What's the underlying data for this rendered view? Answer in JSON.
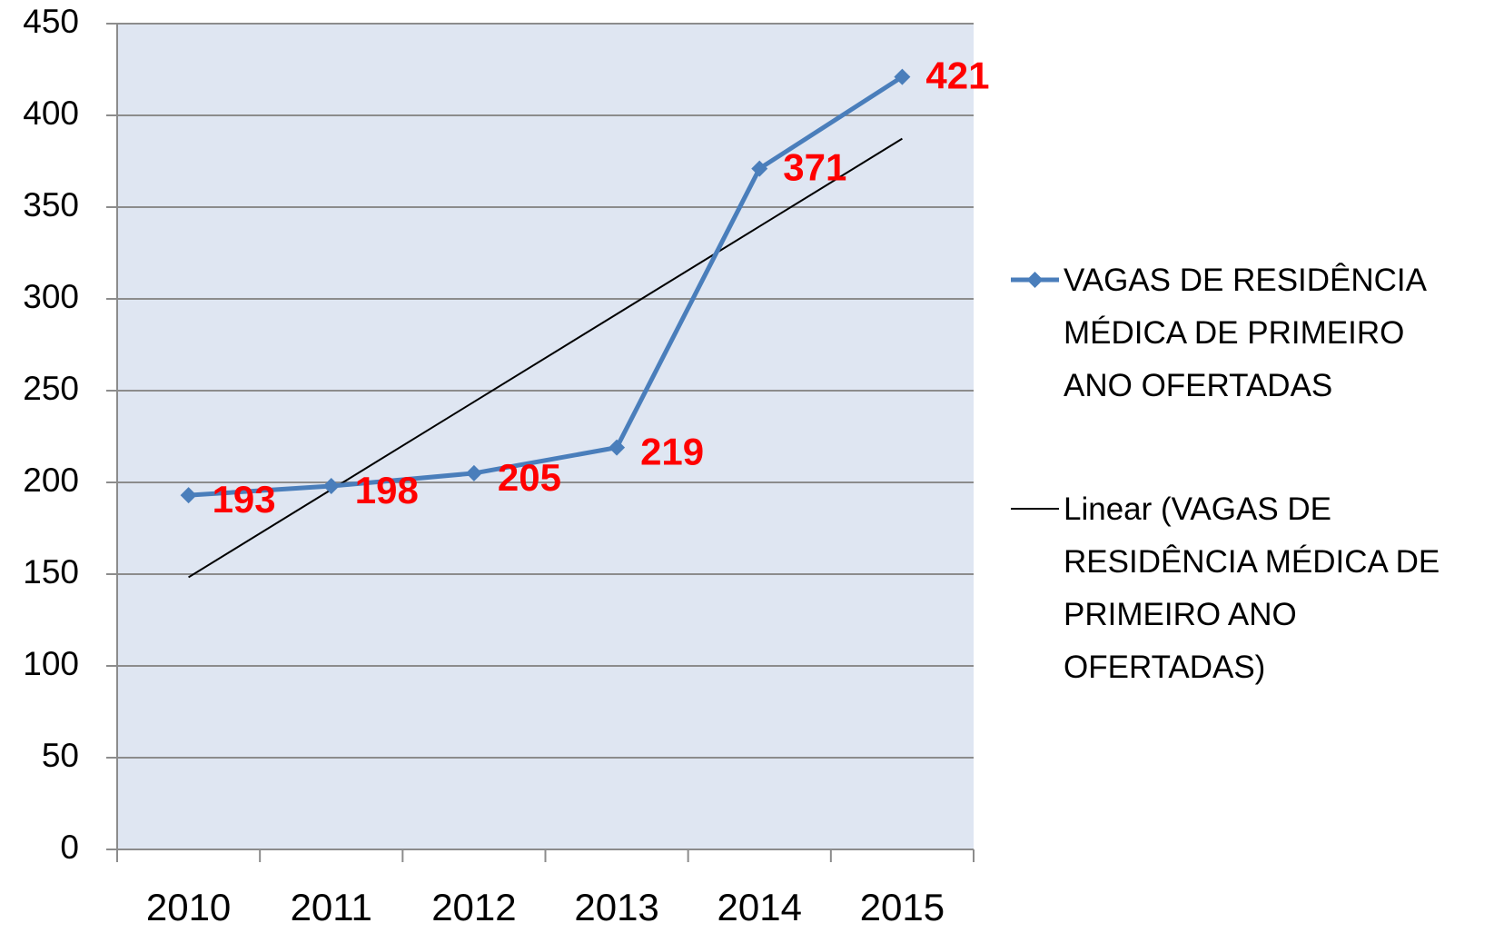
{
  "chart_data": {
    "type": "line",
    "categories": [
      "2010",
      "2011",
      "2012",
      "2013",
      "2014",
      "2015"
    ],
    "series": [
      {
        "name": "VAGAS DE RESIDÊNCIA MÉDICA DE PRIMEIRO ANO OFERTADAS",
        "color": "#4a7ebb",
        "marker": "diamond",
        "values": [
          193,
          198,
          205,
          219,
          371,
          421
        ],
        "data_labels": true,
        "label_color": "#ff0000"
      },
      {
        "name": "Linear (VAGAS DE RESIDÊNCIA MÉDICA DE PRIMEIRO ANO OFERTADAS)",
        "color": "#000000",
        "values": [
          148.3,
          196.1,
          243.9,
          291.7,
          339.5,
          387.3
        ]
      }
    ],
    "ylim": [
      0,
      450
    ],
    "yticks": [
      0,
      50,
      100,
      150,
      200,
      250,
      300,
      350,
      400,
      450
    ],
    "grid": true,
    "legend": "right"
  }
}
